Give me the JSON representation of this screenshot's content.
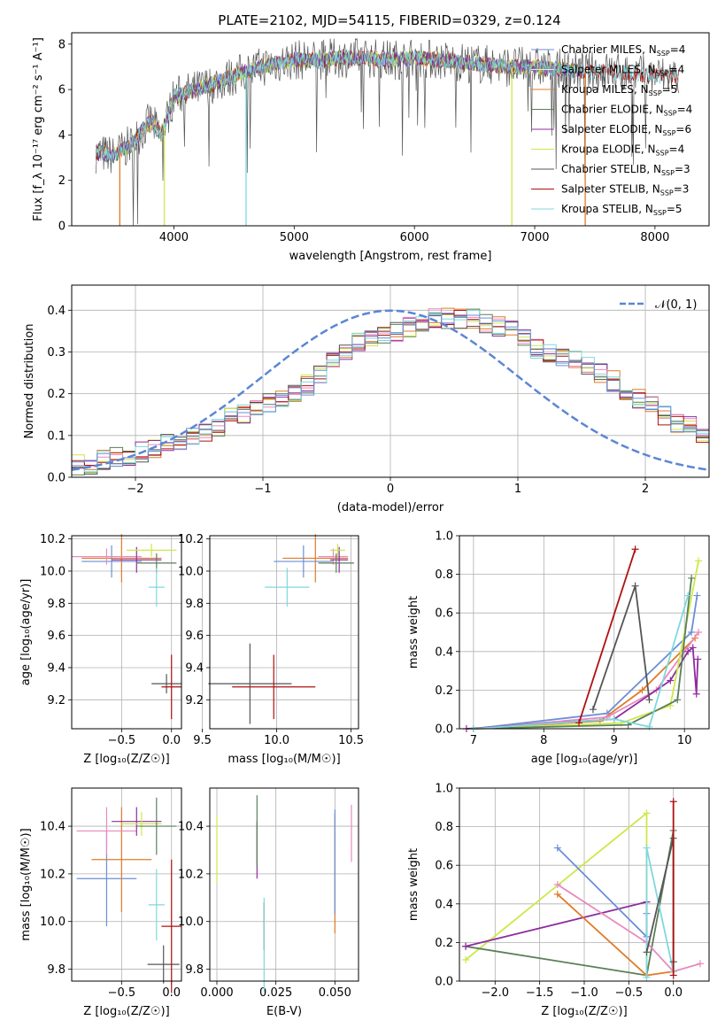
{
  "figure_title": "PLATE=2102, MJD=54115, FIBERID=0329, z=0.124",
  "colors": {
    "chabrier_miles": "#6b8fd6",
    "salpeter_miles": "#e8e8e8",
    "kroupa_miles": "#e07b29",
    "chabrier_elodie": "#5a7f5a",
    "salpeter_elodie": "#8e2d9e",
    "kroupa_elodie": "#cde84a",
    "chabrier_stelib": "#555555",
    "salpeter_stelib": "#b01010",
    "kroupa_stelib": "#7fd8de",
    "pink": "#e88abf",
    "gaussian": "#5b86d4"
  },
  "chart_data": [
    {
      "type": "line",
      "title": "PLATE=2102, MJD=54115, FIBERID=0329, z=0.124",
      "xlabel": "wavelength [Angstrom, rest frame]",
      "ylabel": "Flux [f_λ 10⁻¹⁷ erg cm⁻² s⁻¹ A⁻¹]",
      "xlim": [
        3150,
        8450
      ],
      "ylim": [
        0,
        8.5
      ],
      "xticks": [
        "4000",
        "5000",
        "6000",
        "7000",
        "8000"
      ],
      "yticks": [
        "0",
        "2",
        "4",
        "6",
        "8"
      ],
      "legend": "top-right",
      "series_labels": [
        {
          "model": "Chabrier MILES",
          "nssp": "4"
        },
        {
          "model": "Salpeter MILES",
          "nssp": "4"
        },
        {
          "model": "Kroupa MILES",
          "nssp": "5"
        },
        {
          "model": "Chabrier ELODIE",
          "nssp": "4"
        },
        {
          "model": "Salpeter ELODIE",
          "nssp": "6"
        },
        {
          "model": "Kroupa ELODIE",
          "nssp": "4"
        },
        {
          "model": "Chabrier STELIB",
          "nssp": "3"
        },
        {
          "model": "Salpeter STELIB",
          "nssp": "3"
        },
        {
          "model": "Kroupa STELIB",
          "nssp": "5"
        }
      ],
      "continuum": {
        "x": [
          3350,
          3500,
          3650,
          3800,
          3900,
          4000,
          4200,
          4400,
          4600,
          4800,
          5000,
          5200,
          5400,
          5600,
          5800,
          6000,
          6200,
          6400,
          6600,
          6800,
          7000,
          7200,
          7400,
          7600,
          7800,
          8000,
          8200
        ],
        "y": [
          3.2,
          3.1,
          3.6,
          4.6,
          4.0,
          5.7,
          6.0,
          6.4,
          6.8,
          7.1,
          7.3,
          7.3,
          7.4,
          7.4,
          7.3,
          7.4,
          7.3,
          7.2,
          7.1,
          7.0,
          7.0,
          6.9,
          6.8,
          6.8,
          6.7,
          6.6,
          6.6
        ]
      }
    },
    {
      "type": "histogram",
      "xlabel": "(data-model)/error",
      "ylabel": "Normed distribution",
      "xlim": [
        -2.5,
        2.5
      ],
      "ylim": [
        0,
        0.46
      ],
      "xticks": [
        "−2",
        "−1",
        "0",
        "1",
        "2"
      ],
      "yticks": [
        "0.0",
        "0.1",
        "0.2",
        "0.3",
        "0.4"
      ],
      "legend": "top-right",
      "legend_label": "𝒩(0, 1)",
      "bin_width": 0.1,
      "bin_start": -2.5,
      "base_density": [
        0.03,
        0.03,
        0.04,
        0.05,
        0.05,
        0.06,
        0.07,
        0.08,
        0.09,
        0.1,
        0.11,
        0.12,
        0.14,
        0.15,
        0.16,
        0.18,
        0.19,
        0.2,
        0.22,
        0.25,
        0.28,
        0.3,
        0.32,
        0.33,
        0.34,
        0.35,
        0.36,
        0.37,
        0.38,
        0.38,
        0.38,
        0.38,
        0.37,
        0.36,
        0.35,
        0.33,
        0.31,
        0.3,
        0.29,
        0.28,
        0.27,
        0.25,
        0.23,
        0.21,
        0.19,
        0.17,
        0.15,
        0.13,
        0.12,
        0.1,
        0.09
      ]
    },
    {
      "type": "scatter",
      "xlabel": "Z [log₁₀(Z/Z☉)]",
      "ylabel": "age [log₁₀(age/yr)]",
      "xlim": [
        -1.0,
        0.1
      ],
      "ylim": [
        9.02,
        10.22
      ],
      "xticks": [
        "−0.5",
        "0.0"
      ],
      "yticks": [
        "9.2",
        "9.4",
        "9.6",
        "9.8",
        "10.0",
        "10.2"
      ],
      "points": [
        {
          "c": "chabrier_miles",
          "x": -0.6,
          "y": 10.06,
          "ex": 0.3,
          "ey": 0.1
        },
        {
          "c": "kroupa_miles",
          "x": -0.5,
          "y": 10.08,
          "ex": 0.4,
          "ey": 0.15
        },
        {
          "c": "pink",
          "x": -0.65,
          "y": 10.09,
          "ex": 0.35,
          "ey": 0.05
        },
        {
          "c": "salpeter_elodie",
          "x": -0.35,
          "y": 10.07,
          "ex": 0.25,
          "ey": 0.08
        },
        {
          "c": "kroupa_elodie",
          "x": -0.2,
          "y": 10.13,
          "ex": 0.25,
          "ey": 0.04
        },
        {
          "c": "chabrier_elodie",
          "x": -0.15,
          "y": 10.05,
          "ex": 0.2,
          "ey": 0.06
        },
        {
          "c": "kroupa_stelib",
          "x": -0.15,
          "y": 9.9,
          "ex": 0.08,
          "ey": 0.12
        },
        {
          "c": "chabrier_stelib",
          "x": -0.05,
          "y": 9.3,
          "ex": 0.15,
          "ey": 0.06
        },
        {
          "c": "salpeter_stelib",
          "x": 0.0,
          "y": 9.28,
          "ex": 0.1,
          "ey": 0.2
        }
      ]
    },
    {
      "type": "scatter",
      "xlabel": "mass [log₁₀(M/M☉)]",
      "ylabel": "",
      "xlim": [
        9.55,
        10.55
      ],
      "ylim": [
        9.02,
        10.22
      ],
      "xticks": [
        "9.5",
        "10.0",
        "10.5"
      ],
      "yticks": [
        "9.2",
        "9.4",
        "9.6",
        "9.8",
        "10.0",
        "10.2"
      ],
      "points": [
        {
          "c": "chabrier_stelib",
          "x": 9.82,
          "y": 9.3,
          "ex": 0.28,
          "ey": 0.25
        },
        {
          "c": "salpeter_stelib",
          "x": 9.98,
          "y": 9.28,
          "ex": 0.28,
          "ey": 0.2
        },
        {
          "c": "kroupa_stelib",
          "x": 10.07,
          "y": 9.9,
          "ex": 0.15,
          "ey": 0.12
        },
        {
          "c": "kroupa_miles",
          "x": 10.26,
          "y": 10.08,
          "ex": 0.22,
          "ey": 0.15
        },
        {
          "c": "chabrier_miles",
          "x": 10.18,
          "y": 10.06,
          "ex": 0.2,
          "ey": 0.1
        },
        {
          "c": "pink",
          "x": 10.38,
          "y": 10.09,
          "ex": 0.1,
          "ey": 0.05
        },
        {
          "c": "salpeter_elodie",
          "x": 10.42,
          "y": 10.07,
          "ex": 0.06,
          "ey": 0.08
        },
        {
          "c": "kroupa_elodie",
          "x": 10.41,
          "y": 10.13,
          "ex": 0.05,
          "ey": 0.04
        },
        {
          "c": "chabrier_elodie",
          "x": 10.4,
          "y": 10.05,
          "ex": 0.12,
          "ey": 0.06
        }
      ]
    },
    {
      "type": "line",
      "xlabel": "age [log₁₀(age/yr)]",
      "ylabel": "mass weight",
      "xlim": [
        6.8,
        10.35
      ],
      "ylim": [
        0,
        1.0
      ],
      "xticks": [
        "7",
        "8",
        "9",
        "10"
      ],
      "yticks": [
        "0.0",
        "0.2",
        "0.4",
        "0.6",
        "0.8",
        "1.0"
      ],
      "series": [
        {
          "c": "chabrier_miles",
          "x": [
            7.0,
            8.9,
            10.1,
            10.18
          ],
          "y": [
            0.0,
            0.08,
            0.5,
            0.69
          ]
        },
        {
          "c": "kroupa_miles",
          "x": [
            7.0,
            8.8,
            9.4,
            10.15
          ],
          "y": [
            0.0,
            0.04,
            0.2,
            0.47
          ]
        },
        {
          "c": "pink",
          "x": [
            7.0,
            8.9,
            9.6,
            10.2
          ],
          "y": [
            0.0,
            0.06,
            0.2,
            0.5
          ]
        },
        {
          "c": "salpeter_elodie",
          "x": [
            6.9,
            9.0,
            9.8,
            10.05,
            10.12,
            10.17,
            10.19
          ],
          "y": [
            0.0,
            0.05,
            0.25,
            0.4,
            0.42,
            0.18,
            0.36
          ]
        },
        {
          "c": "kroupa_elodie",
          "x": [
            7.0,
            9.1,
            9.8,
            10.2
          ],
          "y": [
            0.0,
            0.03,
            0.12,
            0.87
          ]
        },
        {
          "c": "chabrier_elodie",
          "x": [
            7.0,
            9.2,
            9.9,
            10.1
          ],
          "y": [
            0.0,
            0.02,
            0.15,
            0.78
          ]
        },
        {
          "c": "kroupa_stelib",
          "x": [
            7.0,
            9.0,
            9.5,
            10.05
          ],
          "y": [
            0.0,
            0.05,
            0.01,
            0.69
          ]
        },
        {
          "c": "chabrier_stelib",
          "x": [
            8.7,
            9.3,
            9.5
          ],
          "y": [
            0.1,
            0.74,
            0.15
          ]
        },
        {
          "c": "salpeter_stelib",
          "x": [
            8.5,
            9.3
          ],
          "y": [
            0.03,
            0.93
          ]
        }
      ]
    },
    {
      "type": "scatter",
      "xlabel": "Z [log₁₀(Z/Z☉)]",
      "ylabel": "mass [log₁₀(M/M☉)]",
      "xlim": [
        -1.0,
        0.1
      ],
      "ylim": [
        9.75,
        10.56
      ],
      "xticks": [
        "−0.5",
        "0.0"
      ],
      "yticks": [
        "9.8",
        "10.0",
        "10.2",
        "10.4"
      ],
      "points": [
        {
          "c": "chabrier_miles",
          "x": -0.65,
          "y": 10.18,
          "ex": 0.3,
          "ey": 0.2
        },
        {
          "c": "kroupa_miles",
          "x": -0.5,
          "y": 10.26,
          "ex": 0.3,
          "ey": 0.22
        },
        {
          "c": "pink",
          "x": -0.65,
          "y": 10.38,
          "ex": 0.3,
          "ey": 0.1
        },
        {
          "c": "salpeter_elodie",
          "x": -0.35,
          "y": 10.42,
          "ex": 0.25,
          "ey": 0.06
        },
        {
          "c": "kroupa_elodie",
          "x": -0.3,
          "y": 10.41,
          "ex": 0.2,
          "ey": 0.05
        },
        {
          "c": "chabrier_elodie",
          "x": -0.15,
          "y": 10.4,
          "ex": 0.2,
          "ey": 0.12
        },
        {
          "c": "kroupa_stelib",
          "x": -0.15,
          "y": 10.07,
          "ex": 0.08,
          "ey": 0.15
        },
        {
          "c": "chabrier_stelib",
          "x": -0.08,
          "y": 9.82,
          "ex": 0.16,
          "ey": 0.08
        },
        {
          "c": "salpeter_stelib",
          "x": 0.0,
          "y": 9.98,
          "ex": 0.1,
          "ey": 0.28
        }
      ]
    },
    {
      "type": "scatter",
      "xlabel": "E(B-V)",
      "ylabel": "",
      "xlim": [
        -0.003,
        0.06
      ],
      "ylim": [
        9.75,
        10.56
      ],
      "xticks": [
        "0.000",
        "0.025",
        "0.050"
      ],
      "yticks": [
        "9.8",
        "10.0",
        "10.2",
        "10.4"
      ],
      "points": [
        {
          "c": "kroupa_elodie",
          "x": 0.0,
          "y": 10.3,
          "ex": 0,
          "ey": 0.14
        },
        {
          "c": "salpeter_elodie",
          "x": 0.017,
          "y": 10.3,
          "ex": 0,
          "ey": 0.12
        },
        {
          "c": "chabrier_elodie",
          "x": 0.017,
          "y": 10.38,
          "ex": 0,
          "ey": 0.15
        },
        {
          "c": "salpeter_stelib",
          "x": 0.02,
          "y": 9.98,
          "ex": 0,
          "ey": 0.1
        },
        {
          "c": "kroupa_stelib",
          "x": 0.02,
          "y": 9.9,
          "ex": 0,
          "ey": 0.2
        },
        {
          "c": "kroupa_miles",
          "x": 0.05,
          "y": 10.2,
          "ex": 0,
          "ey": 0.25
        },
        {
          "c": "chabrier_miles",
          "x": 0.05,
          "y": 10.25,
          "ex": 0,
          "ey": 0.22
        },
        {
          "c": "pink",
          "x": 0.057,
          "y": 10.37,
          "ex": 0,
          "ey": 0.12
        }
      ]
    },
    {
      "type": "line",
      "xlabel": "Z [log₁₀(Z/Z☉)]",
      "ylabel": "mass weight",
      "xlim": [
        -2.4,
        0.4
      ],
      "ylim": [
        0,
        1.0
      ],
      "xticks": [
        "−2.0",
        "−1.5",
        "−1.0",
        "−0.5",
        "0.0"
      ],
      "yticks": [
        "0.0",
        "0.2",
        "0.4",
        "0.6",
        "0.8",
        "1.0"
      ],
      "series": [
        {
          "c": "kroupa_elodie",
          "x": [
            -2.33,
            -0.3,
            -0.3
          ],
          "y": [
            0.11,
            0.87,
            0.03
          ]
        },
        {
          "c": "chabrier_elodie",
          "x": [
            -2.33,
            -0.3,
            0.0
          ],
          "y": [
            0.18,
            0.03,
            0.78
          ]
        },
        {
          "c": "salpeter_elodie",
          "x": [
            -2.33,
            -0.3,
            -0.3
          ],
          "y": [
            0.18,
            0.41,
            0.2
          ]
        },
        {
          "c": "chabrier_miles",
          "x": [
            -1.3,
            -0.3,
            -0.3
          ],
          "y": [
            0.69,
            0.23,
            0.35
          ]
        },
        {
          "c": "pink",
          "x": [
            -1.3,
            -0.3,
            0.0,
            0.3
          ],
          "y": [
            0.5,
            0.2,
            0.05,
            0.09
          ]
        },
        {
          "c": "kroupa_miles",
          "x": [
            -1.3,
            -0.3,
            0.0
          ],
          "y": [
            0.45,
            0.03,
            0.05
          ]
        },
        {
          "c": "kroupa_stelib",
          "x": [
            -0.3,
            -0.3,
            0.0,
            0.0
          ],
          "y": [
            0.02,
            0.69,
            0.05,
            0.1
          ]
        },
        {
          "c": "chabrier_stelib",
          "x": [
            -0.3,
            0.0,
            0.0
          ],
          "y": [
            0.15,
            0.74,
            0.1
          ]
        },
        {
          "c": "salpeter_stelib",
          "x": [
            0.0,
            0.0
          ],
          "y": [
            0.93,
            0.03
          ]
        }
      ]
    }
  ]
}
